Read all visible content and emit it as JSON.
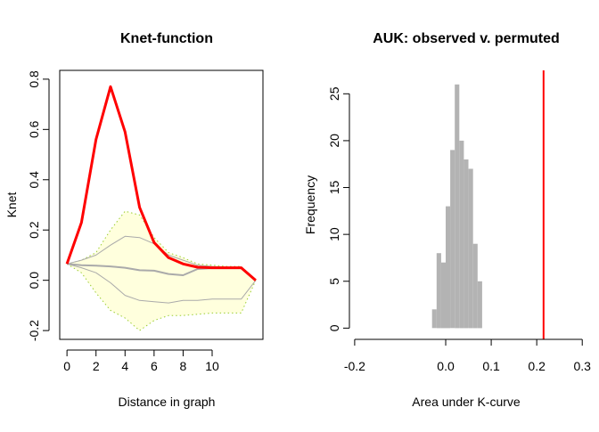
{
  "chart_data": [
    {
      "type": "line",
      "title": "Knet-function",
      "xlabel": "Distance in graph",
      "ylabel": "Knet",
      "xlim": [
        -0.5,
        13.5
      ],
      "ylim": [
        -0.235,
        0.835
      ],
      "x_ticks": [
        0,
        2,
        4,
        6,
        8,
        10
      ],
      "x_tick_labels": [
        "0",
        "2",
        "4",
        "6",
        "8",
        "10"
      ],
      "y_ticks": [
        -0.2,
        0.0,
        0.2,
        0.4,
        0.6,
        0.8
      ],
      "y_tick_labels": [
        "-0.2",
        "0.0",
        "0.2",
        "0.4",
        "0.6",
        "0.8"
      ],
      "x": [
        0,
        1,
        2,
        3,
        4,
        5,
        6,
        7,
        8,
        9,
        10,
        11,
        12,
        13
      ],
      "envelope": {
        "fill_color": "#FFFFDD",
        "border_color": "#9ACD32",
        "upper": [
          0.065,
          0.08,
          0.11,
          0.2,
          0.275,
          0.26,
          0.17,
          0.11,
          0.09,
          0.065,
          0.06,
          0.055,
          0.055,
          0.0
        ],
        "lower": [
          0.065,
          0.03,
          -0.05,
          -0.12,
          -0.15,
          -0.2,
          -0.16,
          -0.14,
          -0.14,
          -0.135,
          -0.13,
          -0.13,
          -0.13,
          0.0
        ]
      },
      "series": [
        {
          "role": "observed",
          "color": "#FF0000",
          "values": [
            0.065,
            0.23,
            0.56,
            0.77,
            0.59,
            0.29,
            0.15,
            0.09,
            0.065,
            0.052,
            0.05,
            0.05,
            0.05,
            0.0
          ]
        },
        {
          "role": "permuted-mean",
          "color": "#AAAAAA",
          "values": [
            0.065,
            0.06,
            0.058,
            0.055,
            0.05,
            0.04,
            0.038,
            0.025,
            0.02,
            0.045,
            0.048,
            0.048,
            0.048,
            0.0
          ]
        },
        {
          "role": "permuted-upper",
          "color": "#AAAAAA",
          "values": [
            0.065,
            0.08,
            0.1,
            0.14,
            0.175,
            0.17,
            0.145,
            0.1,
            0.08,
            0.06,
            0.055,
            0.052,
            0.05,
            0.0
          ]
        },
        {
          "role": "permuted-lower",
          "color": "#AAAAAA",
          "values": [
            0.065,
            0.05,
            0.03,
            -0.01,
            -0.06,
            -0.08,
            -0.085,
            -0.09,
            -0.08,
            -0.08,
            -0.075,
            -0.075,
            -0.075,
            0.0
          ]
        }
      ]
    },
    {
      "type": "bar",
      "title": "AUK: observed v. permuted",
      "xlabel": "Area under K-curve",
      "ylabel": "Frequency",
      "xlim": [
        -0.19,
        0.28
      ],
      "ylim": [
        -1.2,
        27.5
      ],
      "x_ticks": [
        -0.2,
        0.0,
        0.1,
        0.2,
        0.3
      ],
      "x_tick_labels": [
        "-0.2",
        "0.0",
        "0.1",
        "0.2",
        "0.3"
      ],
      "y_ticks": [
        0,
        5,
        10,
        15,
        20,
        25
      ],
      "y_tick_labels": [
        "0",
        "5",
        "10",
        "15",
        "20",
        "25"
      ],
      "bar_color": "#B3B3B3",
      "bin_width": 0.01,
      "bin_starts": [
        -0.03,
        -0.02,
        -0.01,
        0.0,
        0.01,
        0.02,
        0.03,
        0.04,
        0.05,
        0.06,
        0.07,
        0.08,
        0.09
      ],
      "values": [
        2,
        8,
        7,
        13,
        19,
        26,
        20,
        18,
        17,
        9,
        5,
        0,
        0
      ],
      "observed_line": {
        "x": 0.215,
        "color": "#FF0000"
      }
    }
  ]
}
